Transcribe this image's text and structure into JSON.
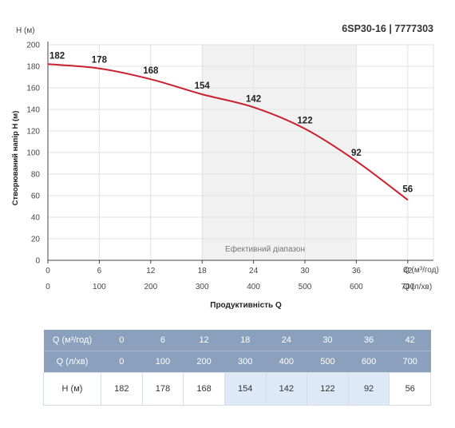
{
  "chart_data": {
    "type": "line",
    "title": "6SP30-16 | 7777303",
    "ylabel": "Створюваний напір H (м)",
    "yunit": "H (м)",
    "xlabel": "Продуктивність Q",
    "x_axis_primary": {
      "unit": "Q (м³/год)",
      "ticks": [
        "0",
        "6",
        "12",
        "18",
        "24",
        "30",
        "36",
        "42"
      ],
      "range": [
        0,
        45
      ]
    },
    "x_axis_secondary": {
      "unit": "Q (л/хв)",
      "ticks": [
        "0",
        "100",
        "200",
        "300",
        "400",
        "500",
        "600",
        "700"
      ]
    },
    "ylim": [
      0,
      200
    ],
    "yticks": [
      "0",
      "20",
      "40",
      "60",
      "80",
      "100",
      "120",
      "140",
      "160",
      "180",
      "200"
    ],
    "grid": true,
    "efficient_range": {
      "label": "Ефективний діапазон",
      "from": 18,
      "to": 36
    },
    "line_color": "#cc1f2d",
    "series": [
      {
        "x": [
          0,
          6,
          12,
          18,
          24,
          30,
          36,
          42
        ],
        "values": [
          182,
          178,
          168,
          154,
          142,
          122,
          92,
          56
        ],
        "labels": [
          "182",
          "178",
          "168",
          "154",
          "142",
          "122",
          "92",
          "56"
        ]
      }
    ]
  },
  "table": {
    "rows": [
      {
        "label": "Q (м³/год)",
        "values": [
          "0",
          "6",
          "12",
          "18",
          "24",
          "30",
          "36",
          "42"
        ]
      },
      {
        "label": "Q (л/хв)",
        "values": [
          "0",
          "100",
          "200",
          "300",
          "400",
          "500",
          "600",
          "700"
        ]
      },
      {
        "label": "H (м)",
        "values": [
          "182",
          "178",
          "168",
          "154",
          "142",
          "122",
          "92",
          "56"
        ]
      }
    ]
  }
}
